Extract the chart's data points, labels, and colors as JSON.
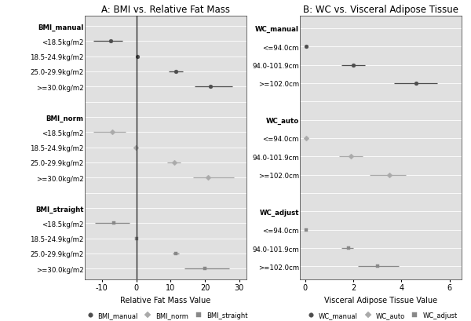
{
  "panel_A": {
    "title": "A: BMI vs. Relative Fat Mass",
    "xlabel": "Relative Fat Mass Value",
    "xlim": [
      -15,
      32
    ],
    "xticks": [
      -10,
      0,
      10,
      20,
      30
    ],
    "vline": 0,
    "rows": [
      {
        "label": "BMI_manual",
        "is_header": true,
        "val": null,
        "lo": null,
        "hi": null,
        "marker": null,
        "color": null
      },
      {
        "label": "<18.5kg/m2",
        "is_header": false,
        "val": -7.5,
        "lo": -12.5,
        "hi": -4.0,
        "marker": "o",
        "color": "#4d4d4d"
      },
      {
        "label": "18.5-24.9kg/m2",
        "is_header": false,
        "val": 0.3,
        "lo": 0.3,
        "hi": 0.3,
        "marker": "o",
        "color": "#4d4d4d"
      },
      {
        "label": "25.0-29.9kg/m2",
        "is_header": false,
        "val": 11.5,
        "lo": 9.5,
        "hi": 13.5,
        "marker": "o",
        "color": "#4d4d4d"
      },
      {
        "label": ">=30.0kg/m2",
        "is_header": false,
        "val": 21.5,
        "lo": 17.0,
        "hi": 28.0,
        "marker": "o",
        "color": "#4d4d4d"
      },
      {
        "label": "",
        "is_header": true,
        "val": null,
        "lo": null,
        "hi": null,
        "marker": null,
        "color": null
      },
      {
        "label": "BMI_norm",
        "is_header": true,
        "val": null,
        "lo": null,
        "hi": null,
        "marker": null,
        "color": null
      },
      {
        "label": "<18.5kg/m2",
        "is_header": false,
        "val": -7.0,
        "lo": -12.5,
        "hi": -3.0,
        "marker": "D",
        "color": "#aaaaaa"
      },
      {
        "label": "18.5-24.9kg/m2",
        "is_header": false,
        "val": -0.2,
        "lo": -0.2,
        "hi": -0.2,
        "marker": "D",
        "color": "#aaaaaa"
      },
      {
        "label": "25.0-29.9kg/m2",
        "is_header": false,
        "val": 11.0,
        "lo": 9.0,
        "hi": 13.0,
        "marker": "D",
        "color": "#aaaaaa"
      },
      {
        "label": ">=30.0kg/m2",
        "is_header": false,
        "val": 21.0,
        "lo": 16.5,
        "hi": 28.5,
        "marker": "D",
        "color": "#aaaaaa"
      },
      {
        "label": "",
        "is_header": true,
        "val": null,
        "lo": null,
        "hi": null,
        "marker": null,
        "color": null
      },
      {
        "label": "BMI_straight",
        "is_header": true,
        "val": null,
        "lo": null,
        "hi": null,
        "marker": null,
        "color": null
      },
      {
        "label": "<18.5kg/m2",
        "is_header": false,
        "val": -6.5,
        "lo": -12.0,
        "hi": -2.0,
        "marker": "s",
        "color": "#888888"
      },
      {
        "label": "18.5-24.9kg/m2",
        "is_header": false,
        "val": 0.1,
        "lo": 0.1,
        "hi": 0.1,
        "marker": "s",
        "color": "#888888"
      },
      {
        "label": "25.0-29.9kg/m2",
        "is_header": false,
        "val": 11.5,
        "lo": 10.5,
        "hi": 12.5,
        "marker": "s",
        "color": "#888888"
      },
      {
        "label": ">=30.0kg/m2",
        "is_header": false,
        "val": 20.0,
        "lo": 14.0,
        "hi": 27.0,
        "marker": "s",
        "color": "#888888"
      }
    ],
    "legend": [
      {
        "label": "BMI_manual",
        "marker": "o",
        "color": "#4d4d4d"
      },
      {
        "label": "BMI_norm",
        "marker": "D",
        "color": "#aaaaaa"
      },
      {
        "label": "BMI_straight",
        "marker": "s",
        "color": "#888888"
      }
    ],
    "background_color": "#e0e0e0"
  },
  "panel_B": {
    "title": "B: WC vs. Visceral Adipose Tissue",
    "xlabel": "Visceral Adipose Tissue Value",
    "xlim": [
      -0.2,
      6.5
    ],
    "xticks": [
      0,
      2,
      4,
      6
    ],
    "vline": null,
    "rows": [
      {
        "label": "WC_manual",
        "is_header": true,
        "val": null,
        "lo": null,
        "hi": null,
        "marker": null,
        "color": null
      },
      {
        "label": "<=94.0cm",
        "is_header": false,
        "val": 0.05,
        "lo": 0.05,
        "hi": 0.05,
        "marker": "o",
        "color": "#4d4d4d"
      },
      {
        "label": "94.0-101.9cm",
        "is_header": false,
        "val": 2.0,
        "lo": 1.5,
        "hi": 2.5,
        "marker": "o",
        "color": "#4d4d4d"
      },
      {
        "label": ">=102.0cm",
        "is_header": false,
        "val": 4.6,
        "lo": 3.7,
        "hi": 5.5,
        "marker": "o",
        "color": "#4d4d4d"
      },
      {
        "label": "",
        "is_header": true,
        "val": null,
        "lo": null,
        "hi": null,
        "marker": null,
        "color": null
      },
      {
        "label": "WC_auto",
        "is_header": true,
        "val": null,
        "lo": null,
        "hi": null,
        "marker": null,
        "color": null
      },
      {
        "label": "<=94.0cm",
        "is_header": false,
        "val": 0.05,
        "lo": 0.05,
        "hi": 0.05,
        "marker": "D",
        "color": "#aaaaaa"
      },
      {
        "label": "94.0-101.9cm",
        "is_header": false,
        "val": 1.9,
        "lo": 1.4,
        "hi": 2.4,
        "marker": "D",
        "color": "#aaaaaa"
      },
      {
        "label": ">=102.0cm",
        "is_header": false,
        "val": 3.5,
        "lo": 2.7,
        "hi": 4.2,
        "marker": "D",
        "color": "#aaaaaa"
      },
      {
        "label": "",
        "is_header": true,
        "val": null,
        "lo": null,
        "hi": null,
        "marker": null,
        "color": null
      },
      {
        "label": "WC_adjust",
        "is_header": true,
        "val": null,
        "lo": null,
        "hi": null,
        "marker": null,
        "color": null
      },
      {
        "label": "<=94.0cm",
        "is_header": false,
        "val": 0.05,
        "lo": 0.05,
        "hi": 0.05,
        "marker": "s",
        "color": "#888888"
      },
      {
        "label": "94.0-101.9cm",
        "is_header": false,
        "val": 1.8,
        "lo": 1.5,
        "hi": 2.0,
        "marker": "s",
        "color": "#888888"
      },
      {
        "label": ">=102.0cm",
        "is_header": false,
        "val": 3.0,
        "lo": 2.2,
        "hi": 3.9,
        "marker": "s",
        "color": "#888888"
      }
    ],
    "legend": [
      {
        "label": "WC_manual",
        "marker": "o",
        "color": "#4d4d4d"
      },
      {
        "label": "WC_auto",
        "marker": "D",
        "color": "#aaaaaa"
      },
      {
        "label": "WC_adjust",
        "marker": "s",
        "color": "#888888"
      }
    ],
    "background_color": "#e0e0e0"
  }
}
